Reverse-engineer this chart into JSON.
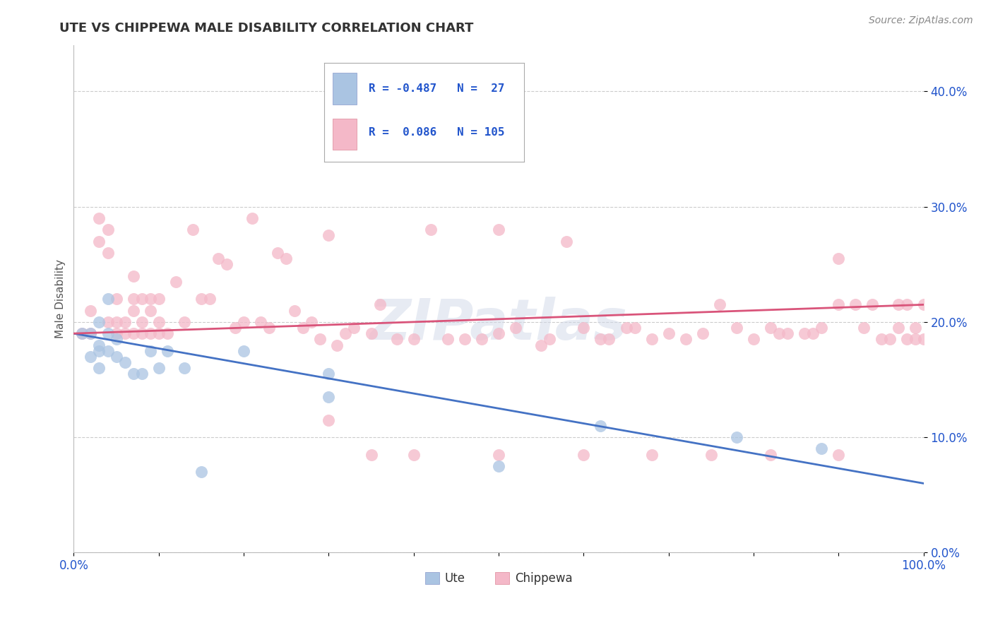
{
  "title": "UTE VS CHIPPEWA MALE DISABILITY CORRELATION CHART",
  "source": "Source: ZipAtlas.com",
  "ylabel": "Male Disability",
  "ute_R": -0.487,
  "ute_N": 27,
  "chippewa_R": 0.086,
  "chippewa_N": 105,
  "xlim": [
    0.0,
    1.0
  ],
  "ylim": [
    0.0,
    0.44
  ],
  "ytick_labels": [
    "0.0%",
    "10.0%",
    "20.0%",
    "30.0%",
    "40.0%"
  ],
  "ytick_values": [
    0.0,
    0.1,
    0.2,
    0.3,
    0.4
  ],
  "xtick_labels": [
    "0.0%",
    "",
    "",
    "",
    "",
    "",
    "",
    "",
    "",
    "",
    "100.0%"
  ],
  "xtick_values": [
    0.0,
    0.1,
    0.2,
    0.3,
    0.4,
    0.5,
    0.6,
    0.7,
    0.8,
    0.9,
    1.0
  ],
  "ute_color": "#aac4e2",
  "chippewa_color": "#f4b8c8",
  "ute_line_color": "#4472c4",
  "chippewa_line_color": "#d9547a",
  "legend_text_color": "#2255cc",
  "background_color": "#ffffff",
  "ute_line_start": 0.19,
  "ute_line_end": 0.06,
  "chippewa_line_start": 0.19,
  "chippewa_line_end": 0.215,
  "ute_x": [
    0.01,
    0.02,
    0.02,
    0.03,
    0.03,
    0.03,
    0.03,
    0.04,
    0.04,
    0.04,
    0.05,
    0.05,
    0.06,
    0.07,
    0.08,
    0.09,
    0.1,
    0.11,
    0.13,
    0.15,
    0.2,
    0.3,
    0.3,
    0.5,
    0.62,
    0.78,
    0.88
  ],
  "ute_y": [
    0.19,
    0.19,
    0.17,
    0.2,
    0.18,
    0.175,
    0.16,
    0.22,
    0.19,
    0.175,
    0.185,
    0.17,
    0.165,
    0.155,
    0.155,
    0.175,
    0.16,
    0.175,
    0.16,
    0.07,
    0.175,
    0.155,
    0.135,
    0.075,
    0.11,
    0.1,
    0.09
  ],
  "chippewa_x": [
    0.01,
    0.02,
    0.02,
    0.03,
    0.03,
    0.04,
    0.04,
    0.04,
    0.05,
    0.05,
    0.05,
    0.06,
    0.06,
    0.07,
    0.07,
    0.07,
    0.07,
    0.08,
    0.08,
    0.08,
    0.09,
    0.09,
    0.09,
    0.1,
    0.1,
    0.1,
    0.11,
    0.12,
    0.13,
    0.14,
    0.15,
    0.16,
    0.17,
    0.18,
    0.19,
    0.2,
    0.21,
    0.22,
    0.23,
    0.24,
    0.25,
    0.26,
    0.27,
    0.28,
    0.29,
    0.3,
    0.31,
    0.32,
    0.33,
    0.35,
    0.36,
    0.38,
    0.4,
    0.42,
    0.44,
    0.46,
    0.48,
    0.5,
    0.5,
    0.52,
    0.55,
    0.56,
    0.58,
    0.6,
    0.62,
    0.63,
    0.65,
    0.66,
    0.68,
    0.7,
    0.72,
    0.74,
    0.76,
    0.78,
    0.8,
    0.82,
    0.83,
    0.84,
    0.86,
    0.87,
    0.88,
    0.9,
    0.9,
    0.92,
    0.93,
    0.94,
    0.95,
    0.96,
    0.97,
    0.97,
    0.98,
    0.98,
    0.99,
    0.99,
    1.0,
    1.0,
    0.3,
    0.35,
    0.4,
    0.5,
    0.6,
    0.68,
    0.75,
    0.82,
    0.9
  ],
  "chippewa_y": [
    0.19,
    0.19,
    0.21,
    0.29,
    0.27,
    0.28,
    0.26,
    0.2,
    0.2,
    0.22,
    0.19,
    0.2,
    0.19,
    0.24,
    0.22,
    0.19,
    0.21,
    0.22,
    0.2,
    0.19,
    0.22,
    0.19,
    0.21,
    0.2,
    0.19,
    0.22,
    0.19,
    0.235,
    0.2,
    0.28,
    0.22,
    0.22,
    0.255,
    0.25,
    0.195,
    0.2,
    0.29,
    0.2,
    0.195,
    0.26,
    0.255,
    0.21,
    0.195,
    0.2,
    0.185,
    0.275,
    0.18,
    0.19,
    0.195,
    0.19,
    0.215,
    0.185,
    0.185,
    0.28,
    0.185,
    0.185,
    0.185,
    0.28,
    0.19,
    0.195,
    0.18,
    0.185,
    0.27,
    0.195,
    0.185,
    0.185,
    0.195,
    0.195,
    0.185,
    0.19,
    0.185,
    0.19,
    0.215,
    0.195,
    0.185,
    0.195,
    0.19,
    0.19,
    0.19,
    0.19,
    0.195,
    0.255,
    0.215,
    0.215,
    0.195,
    0.215,
    0.185,
    0.185,
    0.195,
    0.215,
    0.185,
    0.215,
    0.185,
    0.195,
    0.215,
    0.185,
    0.115,
    0.085,
    0.085,
    0.085,
    0.085,
    0.085,
    0.085,
    0.085,
    0.085
  ]
}
